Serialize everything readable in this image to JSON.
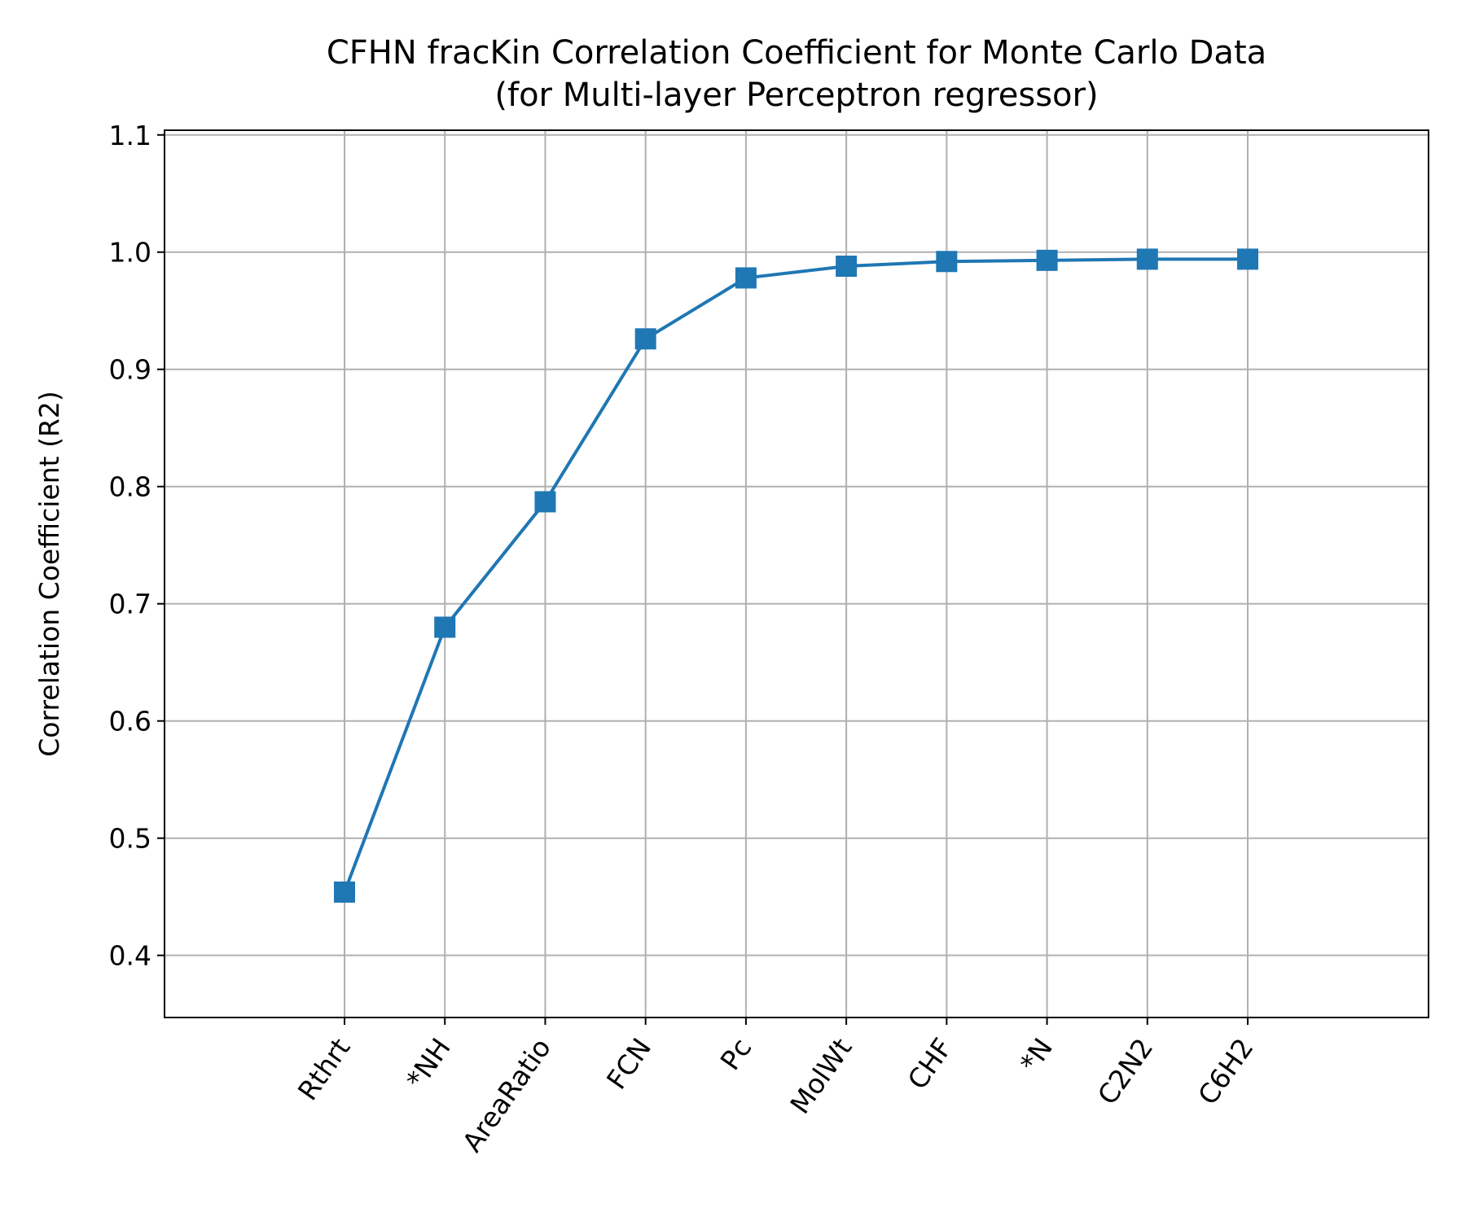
{
  "chart_data": {
    "type": "line",
    "title": "CFHN fracKin Correlation Coefficient for Monte Carlo Data",
    "subtitle": "(for Multi-layer Perceptron regressor)",
    "xlabel": "",
    "ylabel": "Correlation Coefficient (R2)",
    "categories": [
      "Rthrt",
      "*NH",
      "AreaRatio",
      "FCN",
      "Pc",
      "MolWt",
      "CHF",
      "*N",
      "C2N2",
      "C6H2"
    ],
    "series": [
      {
        "values": [
          0.454,
          0.68,
          0.787,
          0.926,
          0.978,
          0.988,
          0.992,
          0.993,
          0.994,
          0.994
        ],
        "color": "#1f77b4",
        "marker": "square"
      }
    ],
    "yticks": [
      "0.4",
      "0.5",
      "0.6",
      "0.7",
      "0.8",
      "0.9",
      "1.0",
      "1.1"
    ],
    "ylim": [
      0.347,
      1.104
    ],
    "grid": true,
    "legend": "none"
  }
}
